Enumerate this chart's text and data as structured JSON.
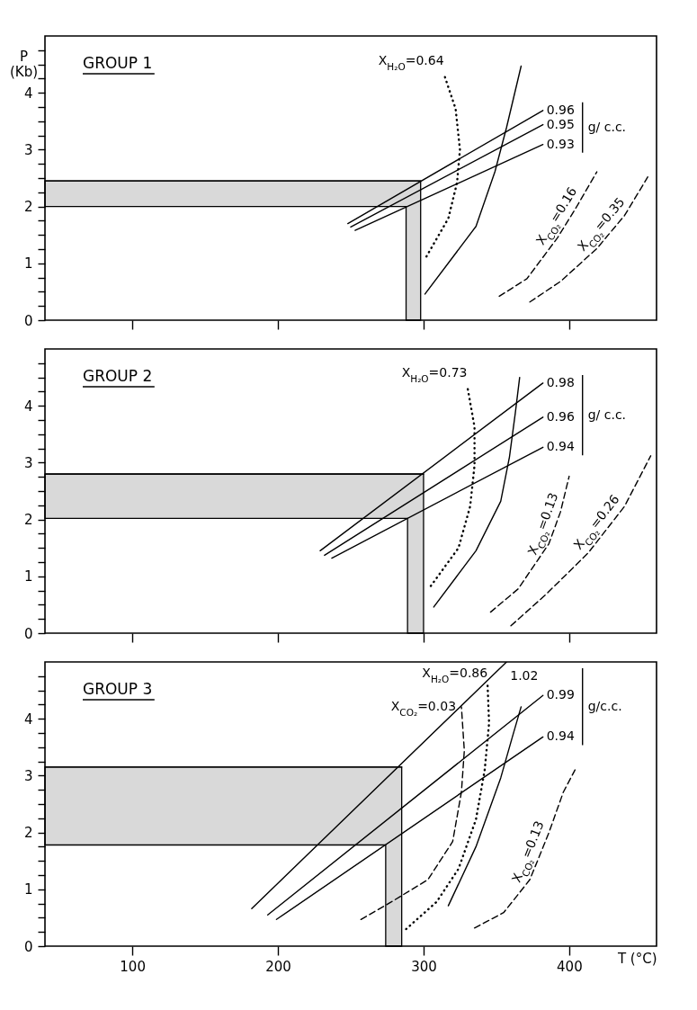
{
  "chart_data": [
    {
      "type": "line",
      "title": "GROUP 1",
      "ylabel": "P (Kb)",
      "xlim": [
        40,
        460
      ],
      "ylim": [
        0,
        5
      ],
      "xticks": [
        100,
        200,
        300,
        400
      ],
      "yticks": [
        0,
        {
          "value": 0.25,
          "label": null
        },
        {
          "value": 0.5,
          "label": null
        },
        {
          "value": 0.75,
          "label": null
        },
        1,
        {
          "value": 1.25,
          "label": null
        },
        {
          "value": 1.5,
          "label": null
        },
        {
          "value": 1.75,
          "label": null
        },
        2,
        {
          "value": 2.25,
          "label": null
        },
        {
          "value": 2.5,
          "label": null
        },
        {
          "value": 2.75,
          "label": null
        },
        3,
        {
          "value": 3.25,
          "label": null
        },
        {
          "value": 3.5,
          "label": null
        },
        {
          "value": 3.75,
          "label": null
        },
        4,
        {
          "value": 4.25,
          "label": null
        },
        {
          "value": 4.5,
          "label": null
        },
        {
          "value": 4.75,
          "label": null
        }
      ],
      "tick_labels": "y",
      "series": [
        {
          "type": "line",
          "color": "#000000",
          "line_style": "solid",
          "x": [
            40,
            288,
            288,
            298
          ],
          "values": [
            2.45,
            2.45,
            2.45,
            2.45
          ],
          "lower": [
            2.0,
            2.0,
            0,
            0
          ],
          "upper": [
            2.45,
            2.45,
            2.45,
            2.45
          ]
        },
        {
          "type": "line",
          "name": "0.96",
          "color": "#000000",
          "line_style": "solid",
          "x": [
            248,
            382
          ],
          "values": [
            1.7,
            3.69
          ]
        },
        {
          "type": "line",
          "name": "0.95",
          "color": "#000000",
          "line_style": "solid",
          "x": [
            250,
            382
          ],
          "values": [
            1.64,
            3.44
          ]
        },
        {
          "type": "line",
          "name": "0.93",
          "color": "#000000",
          "line_style": "solid",
          "x": [
            253,
            382
          ],
          "values": [
            1.58,
            3.09
          ]
        },
        {
          "type": "line",
          "color": "#000000",
          "line_style": "solid",
          "x": [
            301,
            336,
            349,
            357,
            367
          ],
          "values": [
            0.46,
            1.65,
            2.61,
            3.39,
            4.47
          ]
        },
        {
          "type": "line",
          "name": "X$_{H₂O}$=0.64",
          "color": "#000000",
          "line_style": "dotted",
          "x": [
            302,
            317,
            323,
            325,
            322,
            314
          ],
          "values": [
            1.12,
            1.79,
            2.42,
            3.0,
            3.72,
            4.33
          ]
        },
        {
          "type": "line",
          "name": "X$_{CO₂}$=0.16",
          "color": "#000000",
          "line_style": "dashed",
          "x": [
            352,
            371,
            392,
            405,
            419
          ],
          "values": [
            0.42,
            0.73,
            1.45,
            1.99,
            2.61
          ]
        },
        {
          "type": "line",
          "name": "X$_{CO₂}$=0.35",
          "color": "#000000",
          "line_style": "dashed",
          "x": [
            373,
            394,
            419,
            438,
            454
          ],
          "values": [
            0.32,
            0.68,
            1.26,
            1.84,
            2.52
          ]
        }
      ],
      "annotations": [
        "g/ c.c."
      ]
    },
    {
      "type": "line",
      "title": "GROUP 2",
      "xlim": [
        40,
        460
      ],
      "ylim": [
        0,
        5
      ],
      "xticks": [
        100,
        200,
        300,
        400
      ],
      "yticks": [
        0,
        {
          "value": 0.25,
          "label": null
        },
        {
          "value": 0.5,
          "label": null
        },
        {
          "value": 0.75,
          "label": null
        },
        1,
        {
          "value": 1.25,
          "label": null
        },
        {
          "value": 1.5,
          "label": null
        },
        {
          "value": 1.75,
          "label": null
        },
        2,
        {
          "value": 2.25,
          "label": null
        },
        {
          "value": 2.5,
          "label": null
        },
        {
          "value": 2.75,
          "label": null
        },
        3,
        {
          "value": 3.25,
          "label": null
        },
        {
          "value": 3.5,
          "label": null
        },
        {
          "value": 3.75,
          "label": null
        },
        4,
        {
          "value": 4.25,
          "label": null
        },
        {
          "value": 4.5,
          "label": null
        },
        {
          "value": 4.75,
          "label": null
        }
      ],
      "tick_labels": "y",
      "series": [
        {
          "type": "line",
          "color": "#000000",
          "line_style": "solid",
          "x": [
            40,
            289,
            289,
            300
          ],
          "values": [
            2.8,
            2.8,
            2.8,
            2.8
          ],
          "lower": [
            2.02,
            2.02,
            0,
            0
          ],
          "upper": [
            2.8,
            2.8,
            2.8,
            2.8
          ]
        },
        {
          "type": "line",
          "name": "0.98",
          "color": "#000000",
          "line_style": "solid",
          "x": [
            229,
            382
          ],
          "values": [
            1.45,
            4.4
          ]
        },
        {
          "type": "line",
          "name": "0.96",
          "color": "#000000",
          "line_style": "solid",
          "x": [
            232,
            382
          ],
          "values": [
            1.37,
            3.8
          ]
        },
        {
          "type": "line",
          "name": "0.94",
          "color": "#000000",
          "line_style": "solid",
          "x": [
            237,
            382
          ],
          "values": [
            1.32,
            3.27
          ]
        },
        {
          "type": "line",
          "color": "#000000",
          "line_style": "solid",
          "x": [
            307,
            336,
            353,
            359,
            363,
            366
          ],
          "values": [
            0.46,
            1.45,
            2.32,
            3.1,
            3.87,
            4.5
          ]
        },
        {
          "type": "line",
          "name": "X$_{H₂O}$=0.73",
          "color": "#000000",
          "line_style": "dotted",
          "x": [
            305,
            324,
            332,
            335,
            335,
            330
          ],
          "values": [
            0.83,
            1.5,
            2.23,
            2.95,
            3.63,
            4.35
          ]
        },
        {
          "type": "line",
          "name": "X$_{CO₂}$=0.13",
          "color": "#000000",
          "line_style": "dashed",
          "x": [
            346,
            365,
            386,
            394,
            400
          ],
          "values": [
            0.37,
            0.78,
            1.57,
            2.13,
            2.76
          ]
        },
        {
          "type": "line",
          "name": "X$_{CO₂}$=0.26",
          "color": "#000000",
          "line_style": "dashed",
          "x": [
            360,
            384,
            413,
            438,
            456
          ],
          "values": [
            0.13,
            0.68,
            1.41,
            2.23,
            3.12
          ]
        }
      ],
      "annotations": [
        "g/ c.c."
      ]
    },
    {
      "type": "line",
      "title": "GROUP 3",
      "xlabel": "T (°C)",
      "xlim": [
        40,
        460
      ],
      "ylim": [
        0,
        5
      ],
      "xticks": [
        100,
        200,
        300,
        400
      ],
      "yticks": [
        0,
        {
          "value": 0.25,
          "label": null
        },
        {
          "value": 0.5,
          "label": null
        },
        {
          "value": 0.75,
          "label": null
        },
        1,
        {
          "value": 1.25,
          "label": null
        },
        {
          "value": 1.5,
          "label": null
        },
        {
          "value": 1.75,
          "label": null
        },
        2,
        {
          "value": 2.25,
          "label": null
        },
        {
          "value": 2.5,
          "label": null
        },
        {
          "value": 2.75,
          "label": null
        },
        3,
        {
          "value": 3.25,
          "label": null
        },
        {
          "value": 3.5,
          "label": null
        },
        {
          "value": 3.75,
          "label": null
        },
        4,
        {
          "value": 4.25,
          "label": null
        },
        {
          "value": 4.5,
          "label": null
        },
        {
          "value": 4.75,
          "label": null
        }
      ],
      "series": [
        {
          "type": "line",
          "color": "#000000",
          "line_style": "solid",
          "x": [
            40,
            274,
            274,
            285
          ],
          "values": [
            3.15,
            3.15,
            3.15,
            3.15
          ],
          "lower": [
            1.78,
            1.78,
            0,
            0
          ],
          "upper": [
            3.15,
            3.15,
            3.15,
            3.15
          ]
        },
        {
          "type": "line",
          "name": "1.02",
          "color": "#000000",
          "line_style": "solid",
          "x": [
            182,
            357
          ],
          "values": [
            0.66,
            5.0
          ]
        },
        {
          "type": "line",
          "name": "0.99",
          "color": "#000000",
          "line_style": "solid",
          "x": [
            193,
            382
          ],
          "values": [
            0.55,
            4.41
          ]
        },
        {
          "type": "line",
          "name": "0.94",
          "color": "#000000",
          "line_style": "solid",
          "x": [
            199,
            382
          ],
          "values": [
            0.47,
            3.68
          ]
        },
        {
          "type": "line",
          "color": "#000000",
          "line_style": "solid",
          "x": [
            317,
            336,
            353,
            361,
            367
          ],
          "values": [
            0.71,
            1.75,
            2.96,
            3.68,
            4.21
          ]
        },
        {
          "type": "line",
          "name": "X$_{H₂O}$=0.86",
          "color": "#000000",
          "line_style": "dotted",
          "x": [
            288,
            309,
            324,
            336,
            342,
            345,
            344
          ],
          "values": [
            0.3,
            0.78,
            1.36,
            2.23,
            3.1,
            3.92,
            4.58
          ]
        },
        {
          "type": "line",
          "name": "X$_{CO₂}$=0.03",
          "color": "#000000",
          "line_style": "dashed",
          "x": [
            257,
            278,
            303,
            320,
            326,
            328,
            326
          ],
          "values": [
            0.47,
            0.78,
            1.17,
            1.84,
            2.71,
            3.44,
            4.21
          ]
        },
        {
          "type": "line",
          "name": "X$_{CO₂}$=0.13",
          "color": "#000000",
          "line_style": "dashed",
          "x": [
            335,
            355,
            373,
            386,
            396,
            404
          ],
          "values": [
            0.32,
            0.59,
            1.17,
            1.99,
            2.71,
            3.1
          ]
        }
      ],
      "annotations": [
        "g/c.c."
      ]
    }
  ]
}
